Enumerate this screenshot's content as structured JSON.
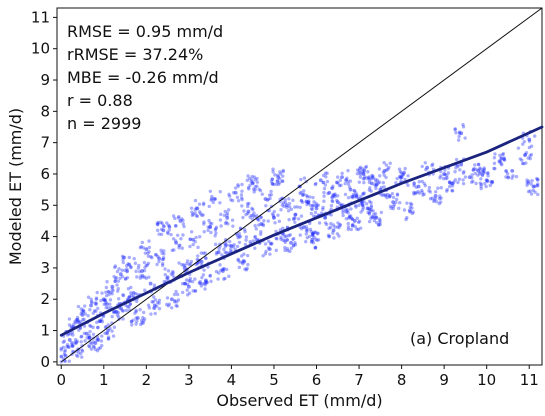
{
  "chart_data": {
    "type": "scatter",
    "title": "",
    "xlabel": "Observed ET (mm/d)",
    "ylabel": "Modeled ET (mm/d)",
    "xlim": [
      -0.1,
      11.3
    ],
    "ylim": [
      -0.1,
      11.3
    ],
    "xticks": [
      0,
      1,
      2,
      3,
      4,
      5,
      6,
      7,
      8,
      9,
      10,
      11
    ],
    "yticks": [
      0,
      1,
      2,
      3,
      4,
      5,
      6,
      7,
      8,
      9,
      10,
      11
    ],
    "grid": false,
    "annotation_lines": [
      "RMSE = 0.95 mm/d",
      "rRMSE = 37.24%",
      "MBE = -0.26 mm/d",
      "r = 0.88",
      "n = 2999"
    ],
    "panel_label": "(a) Cropland",
    "one_to_one_line": {
      "x": [
        0,
        11.3
      ],
      "y": [
        0,
        11.3
      ]
    },
    "fit_line": {
      "x": [
        0,
        1,
        2,
        3,
        4,
        5,
        6,
        7,
        8,
        9,
        10,
        11.3
      ],
      "y": [
        0.85,
        1.55,
        2.2,
        2.85,
        3.45,
        4.05,
        4.6,
        5.15,
        5.7,
        6.2,
        6.7,
        7.5
      ]
    },
    "points_sample": [
      {
        "x": 0.1,
        "y": 0.2
      },
      {
        "x": 0.2,
        "y": 0.7
      },
      {
        "x": 0.3,
        "y": 1.1
      },
      {
        "x": 0.4,
        "y": 0.4
      },
      {
        "x": 0.5,
        "y": 1.5
      },
      {
        "x": 0.6,
        "y": 0.9
      },
      {
        "x": 0.7,
        "y": 1.8
      },
      {
        "x": 0.8,
        "y": 0.6
      },
      {
        "x": 0.9,
        "y": 1.3
      },
      {
        "x": 1.0,
        "y": 2.0
      },
      {
        "x": 1.1,
        "y": 1.0
      },
      {
        "x": 1.2,
        "y": 2.4
      },
      {
        "x": 1.3,
        "y": 1.6
      },
      {
        "x": 1.4,
        "y": 2.8
      },
      {
        "x": 1.5,
        "y": 1.9
      },
      {
        "x": 1.6,
        "y": 3.1
      },
      {
        "x": 1.7,
        "y": 2.2
      },
      {
        "x": 1.8,
        "y": 1.4
      },
      {
        "x": 1.9,
        "y": 2.9
      },
      {
        "x": 2.0,
        "y": 3.6
      },
      {
        "x": 2.1,
        "y": 2.5
      },
      {
        "x": 2.2,
        "y": 1.8
      },
      {
        "x": 2.3,
        "y": 3.3
      },
      {
        "x": 2.4,
        "y": 4.2
      },
      {
        "x": 2.5,
        "y": 2.7
      },
      {
        "x": 2.6,
        "y": 2.0
      },
      {
        "x": 2.7,
        "y": 3.8
      },
      {
        "x": 2.8,
        "y": 4.5
      },
      {
        "x": 2.9,
        "y": 3.0
      },
      {
        "x": 3.0,
        "y": 2.4
      },
      {
        "x": 3.1,
        "y": 3.9
      },
      {
        "x": 3.2,
        "y": 4.9
      },
      {
        "x": 3.3,
        "y": 3.2
      },
      {
        "x": 3.4,
        "y": 2.6
      },
      {
        "x": 3.5,
        "y": 4.3
      },
      {
        "x": 3.6,
        "y": 5.2
      },
      {
        "x": 3.7,
        "y": 3.5
      },
      {
        "x": 3.8,
        "y": 2.9
      },
      {
        "x": 3.9,
        "y": 4.6
      },
      {
        "x": 4.0,
        "y": 3.7
      },
      {
        "x": 4.1,
        "y": 5.4
      },
      {
        "x": 4.2,
        "y": 4.0
      },
      {
        "x": 4.3,
        "y": 3.2
      },
      {
        "x": 4.4,
        "y": 4.8
      },
      {
        "x": 4.5,
        "y": 5.7
      },
      {
        "x": 4.6,
        "y": 3.9
      },
      {
        "x": 4.7,
        "y": 4.4
      },
      {
        "x": 4.8,
        "y": 5.2
      },
      {
        "x": 4.9,
        "y": 3.6
      },
      {
        "x": 5.0,
        "y": 4.6
      },
      {
        "x": 5.1,
        "y": 5.9
      },
      {
        "x": 5.2,
        "y": 4.1
      },
      {
        "x": 5.3,
        "y": 5.0
      },
      {
        "x": 5.4,
        "y": 3.8
      },
      {
        "x": 5.5,
        "y": 4.7
      },
      {
        "x": 5.6,
        "y": 5.6
      },
      {
        "x": 5.7,
        "y": 4.3
      },
      {
        "x": 5.8,
        "y": 5.1
      },
      {
        "x": 5.9,
        "y": 3.9
      },
      {
        "x": 6.0,
        "y": 4.9
      },
      {
        "x": 6.1,
        "y": 5.8
      },
      {
        "x": 6.2,
        "y": 4.6
      },
      {
        "x": 6.3,
        "y": 5.4
      },
      {
        "x": 6.4,
        "y": 4.2
      },
      {
        "x": 6.5,
        "y": 5.1
      },
      {
        "x": 6.6,
        "y": 5.9
      },
      {
        "x": 6.7,
        "y": 4.8
      },
      {
        "x": 6.8,
        "y": 5.5
      },
      {
        "x": 6.9,
        "y": 4.5
      },
      {
        "x": 7.0,
        "y": 5.2
      },
      {
        "x": 7.1,
        "y": 6.0
      },
      {
        "x": 7.2,
        "y": 4.9
      },
      {
        "x": 7.3,
        "y": 5.7
      },
      {
        "x": 7.4,
        "y": 4.6
      },
      {
        "x": 7.5,
        "y": 5.5
      },
      {
        "x": 7.6,
        "y": 6.1
      },
      {
        "x": 7.8,
        "y": 5.1
      },
      {
        "x": 8.0,
        "y": 5.9
      },
      {
        "x": 8.2,
        "y": 4.8
      },
      {
        "x": 8.4,
        "y": 5.6
      },
      {
        "x": 8.6,
        "y": 6.2
      },
      {
        "x": 8.8,
        "y": 5.3
      },
      {
        "x": 9.0,
        "y": 6.0
      },
      {
        "x": 9.2,
        "y": 5.7
      },
      {
        "x": 9.4,
        "y": 6.3
      },
      {
        "x": 9.6,
        "y": 5.9
      },
      {
        "x": 9.8,
        "y": 6.1
      },
      {
        "x": 10.0,
        "y": 5.8
      },
      {
        "x": 10.3,
        "y": 6.4
      },
      {
        "x": 10.6,
        "y": 6.1
      },
      {
        "x": 10.9,
        "y": 6.6
      },
      {
        "x": 11.1,
        "y": 5.6
      },
      {
        "x": 9.4,
        "y": 7.3
      },
      {
        "x": 11.0,
        "y": 7.1
      }
    ],
    "colors": {
      "points": "#1f2bff",
      "fit_line": "#1a237e",
      "one_to_one": "#111111",
      "axes": "#111111",
      "text": "#111111"
    }
  }
}
